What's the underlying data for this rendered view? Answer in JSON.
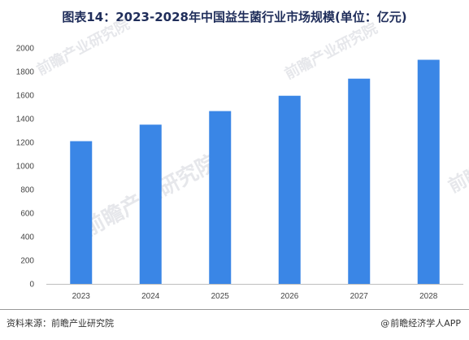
{
  "title": "图表14：2023-2028年中国益生菌行业市场规模(单位：亿元)",
  "watermark": "前瞻产业研究院",
  "footer": {
    "source": "资料来源：前瞻产业研究院",
    "brand_at": "@",
    "brand": "前瞻经济学人APP"
  },
  "colors": {
    "bar": "#3a86e6",
    "axis": "#bfbfbf"
  },
  "chart_data": {
    "type": "bar",
    "title": "图表14：2023-2028年中国益生菌行业市场规模(单位：亿元)",
    "categories": [
      "2023",
      "2024",
      "2025",
      "2026",
      "2027",
      "2028"
    ],
    "values": [
      1210,
      1350,
      1465,
      1595,
      1740,
      1900
    ],
    "xlabel": "",
    "ylabel": "",
    "ylim": [
      0,
      2000
    ],
    "yticks": [
      "0",
      "200",
      "400",
      "600",
      "800",
      "1000",
      "1200",
      "1400",
      "1600",
      "1800",
      "2000"
    ],
    "grid": false,
    "legend": "none"
  }
}
